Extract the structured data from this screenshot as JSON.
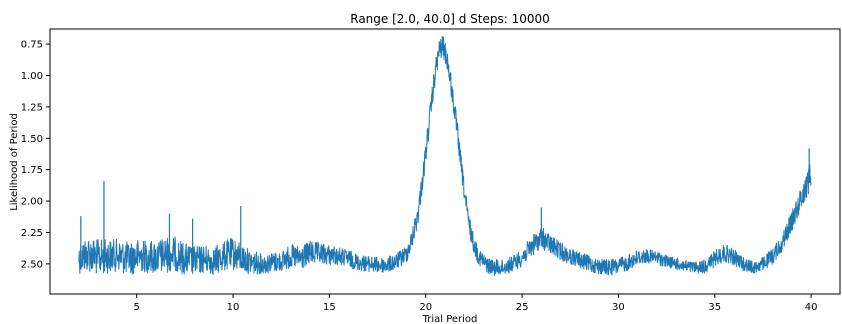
{
  "chart_data": {
    "type": "line",
    "title": "Range [2.0, 40.0] d  Steps: 10000",
    "xlabel": "Trial Period",
    "ylabel": "Likelihood of Period",
    "xlim": [
      0.5,
      41.5
    ],
    "ylim": [
      2.74,
      0.63
    ],
    "y_inverted": true,
    "xticks": [
      5,
      10,
      15,
      20,
      25,
      30,
      35,
      40
    ],
    "yticks": [
      0.75,
      1.0,
      1.25,
      1.5,
      1.75,
      2.0,
      2.25,
      2.5
    ],
    "ytick_labels": [
      "0.75",
      "1.00",
      "1.25",
      "1.50",
      "1.75",
      "2.00",
      "2.25",
      "2.50"
    ],
    "grid": false,
    "series": [
      {
        "color": "#1f77b4",
        "x": [
          2.0,
          2.5,
          3.0,
          3.5,
          4.0,
          4.5,
          5.0,
          5.5,
          6.0,
          6.5,
          7.0,
          7.5,
          8.0,
          8.5,
          9.0,
          9.5,
          10.0,
          10.5,
          11.0,
          11.5,
          12.0,
          12.5,
          13.0,
          13.5,
          14.0,
          14.5,
          15.0,
          15.5,
          16.0,
          16.5,
          17.0,
          17.5,
          18.0,
          18.5,
          19.0,
          19.3,
          19.6,
          19.9,
          20.2,
          20.5,
          20.7,
          20.9,
          21.1,
          21.3,
          21.6,
          21.9,
          22.2,
          22.5,
          22.8,
          23.1,
          23.5,
          24.0,
          24.5,
          25.0,
          25.5,
          26.0,
          26.5,
          27.0,
          27.5,
          28.0,
          28.5,
          29.0,
          29.5,
          30.0,
          30.5,
          31.0,
          31.5,
          32.0,
          32.5,
          33.0,
          33.5,
          34.0,
          34.5,
          35.0,
          35.5,
          36.0,
          36.5,
          37.0,
          37.5,
          38.0,
          38.5,
          39.0,
          39.5,
          40.0
        ],
        "y": [
          2.45,
          2.42,
          2.45,
          2.44,
          2.43,
          2.46,
          2.44,
          2.44,
          2.45,
          2.43,
          2.42,
          2.46,
          2.48,
          2.46,
          2.48,
          2.44,
          2.42,
          2.46,
          2.49,
          2.5,
          2.49,
          2.48,
          2.44,
          2.46,
          2.41,
          2.42,
          2.43,
          2.44,
          2.46,
          2.49,
          2.5,
          2.51,
          2.51,
          2.48,
          2.42,
          2.3,
          2.1,
          1.75,
          1.35,
          0.97,
          0.8,
          0.77,
          0.86,
          1.06,
          1.4,
          1.8,
          2.15,
          2.35,
          2.45,
          2.5,
          2.53,
          2.53,
          2.5,
          2.45,
          2.36,
          2.29,
          2.35,
          2.4,
          2.44,
          2.47,
          2.5,
          2.52,
          2.53,
          2.52,
          2.49,
          2.45,
          2.44,
          2.45,
          2.48,
          2.5,
          2.52,
          2.53,
          2.52,
          2.46,
          2.41,
          2.45,
          2.5,
          2.53,
          2.5,
          2.44,
          2.33,
          2.16,
          1.97,
          1.78
        ],
        "band": [
          0.16,
          0.18,
          0.18,
          0.17,
          0.16,
          0.17,
          0.17,
          0.16,
          0.17,
          0.18,
          0.17,
          0.16,
          0.15,
          0.14,
          0.14,
          0.15,
          0.16,
          0.14,
          0.12,
          0.1,
          0.1,
          0.1,
          0.12,
          0.12,
          0.12,
          0.11,
          0.1,
          0.09,
          0.09,
          0.08,
          0.08,
          0.08,
          0.08,
          0.08,
          0.09,
          0.1,
          0.11,
          0.11,
          0.11,
          0.11,
          0.11,
          0.11,
          0.11,
          0.11,
          0.11,
          0.1,
          0.1,
          0.09,
          0.09,
          0.08,
          0.08,
          0.08,
          0.08,
          0.09,
          0.1,
          0.11,
          0.1,
          0.09,
          0.08,
          0.08,
          0.08,
          0.08,
          0.08,
          0.08,
          0.08,
          0.08,
          0.07,
          0.07,
          0.06,
          0.06,
          0.06,
          0.06,
          0.07,
          0.08,
          0.09,
          0.08,
          0.07,
          0.06,
          0.07,
          0.08,
          0.09,
          0.1,
          0.12,
          0.14
        ],
        "spikes": [
          [
            3.3,
            1.84
          ],
          [
            2.1,
            2.12
          ],
          [
            6.7,
            2.1
          ],
          [
            10.4,
            2.04
          ],
          [
            7.9,
            2.14
          ],
          [
            26.0,
            2.05
          ],
          [
            39.9,
            1.58
          ]
        ]
      }
    ]
  }
}
